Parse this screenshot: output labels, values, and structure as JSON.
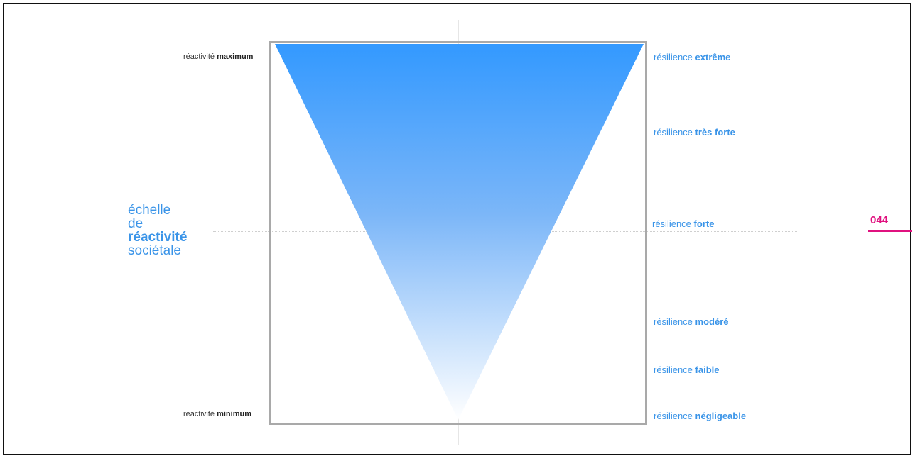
{
  "scale_title": {
    "line1": "échelle",
    "line2": "de",
    "line3": "réactivité",
    "line4": "sociétale"
  },
  "left_labels": {
    "max": {
      "prefix": "réactivité",
      "bold": "maximum"
    },
    "min": {
      "prefix": "réactivité",
      "bold": "minimum"
    }
  },
  "right_labels": [
    {
      "prefix": "résilience",
      "bold": "extrême"
    },
    {
      "prefix": "résilience",
      "bold": "très forte"
    },
    {
      "prefix": "résilience",
      "bold": "forte"
    },
    {
      "prefix": "résilience",
      "bold": "modéré"
    },
    {
      "prefix": "résilience",
      "bold": "faible"
    },
    {
      "prefix": "résilience",
      "bold": "négligeable"
    }
  ],
  "page_number": "044",
  "colors": {
    "accent_blue": "#3a94e8",
    "triangle_top": "#3399ff",
    "page_pink": "#e0117f",
    "box_border": "#a9a9a9"
  }
}
